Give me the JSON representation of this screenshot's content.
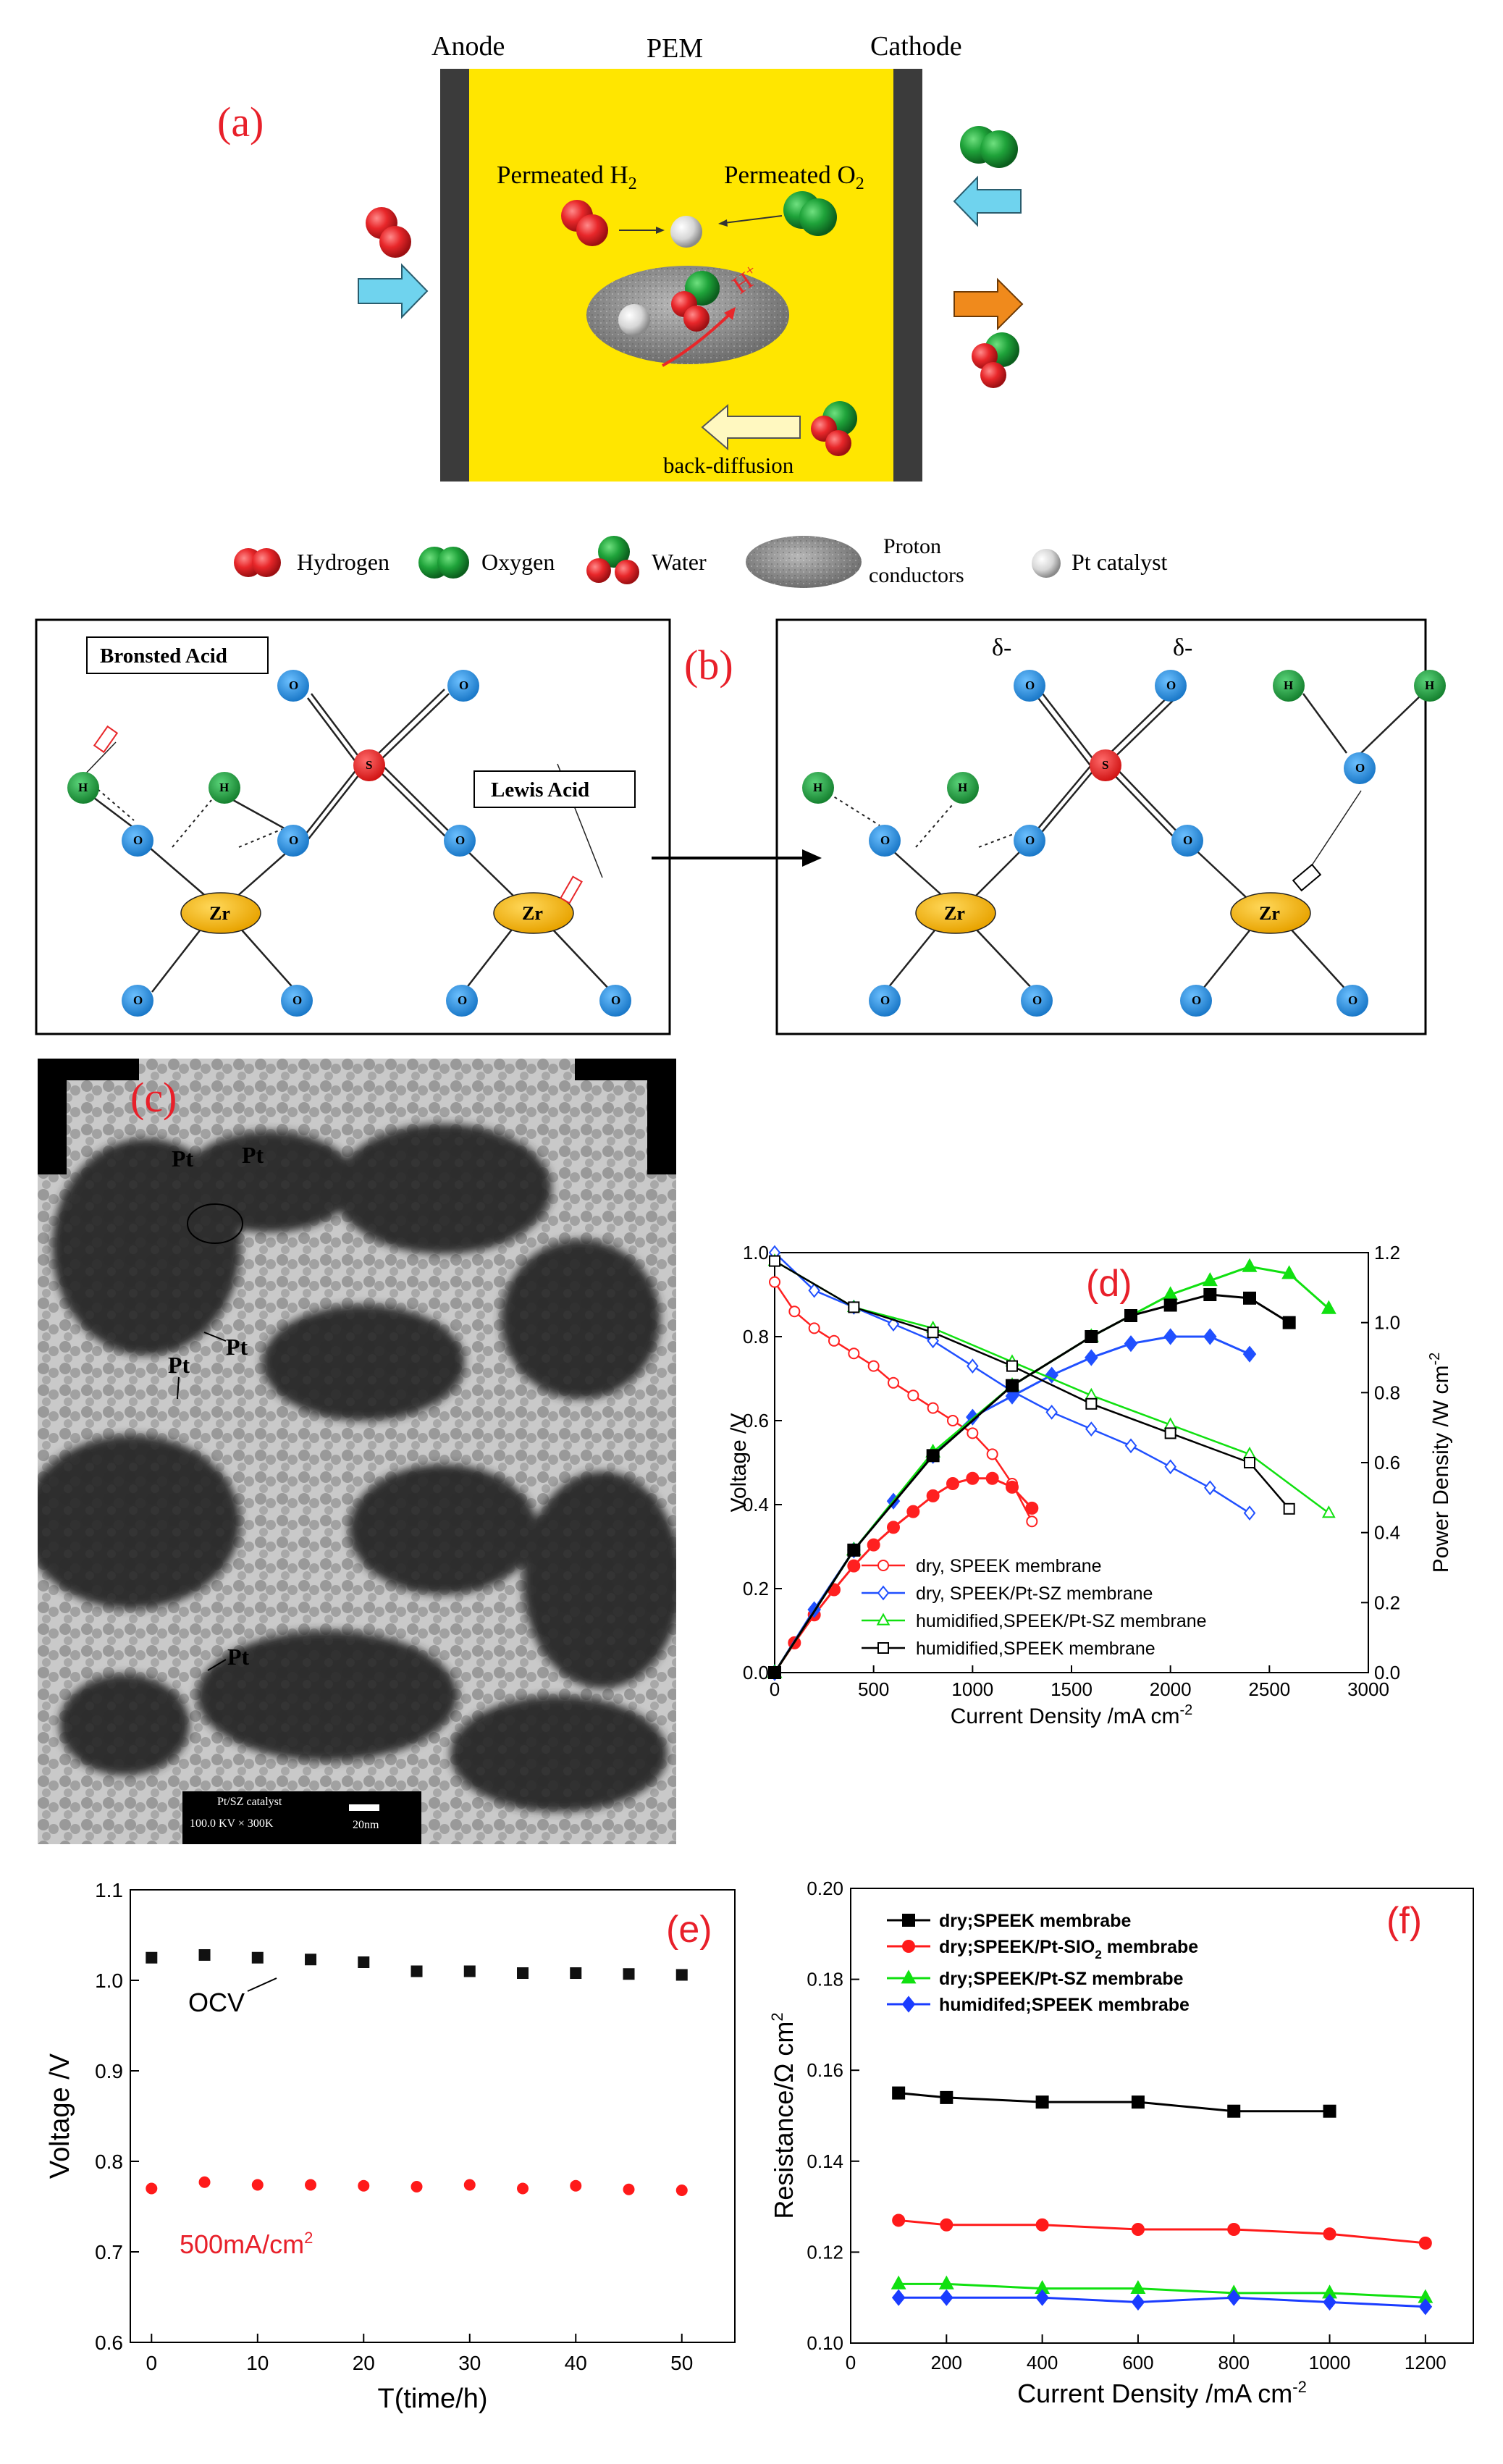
{
  "panel_a": {
    "letter": "(a)",
    "anode": "Anode",
    "pem": "PEM",
    "cathode": "Cathode",
    "permeated_h2": "Permeated H",
    "h2_sub": "2",
    "permeated_o2": "Permeated O",
    "o2_sub": "2",
    "hplus": "H",
    "hplus_sup": "+",
    "back_diffusion": "back-diffusion",
    "legend": {
      "hydrogen": "Hydrogen",
      "oxygen": "Oxygen",
      "water": "Water",
      "proton_1": "Proton",
      "proton_2": "conductors",
      "pt": "Pt catalyst"
    },
    "colors": {
      "pem": "#ffe600",
      "electrode": "#3b3b3b",
      "hydrogen": "#e8272a",
      "oxygen": "#1fa33a",
      "arrow_in": "#6fd3ee",
      "arrow_out": "#f08a1c"
    }
  },
  "panel_b": {
    "letter": "(b)",
    "bronsted": "Bronsted Acid",
    "lewis": "Lewis Acid",
    "delta": "δ-",
    "atoms": {
      "O": "O",
      "H": "H",
      "S": "S",
      "Zr": "Zr"
    },
    "colors": {
      "O": "#2b8fe0",
      "H": "#1f9e3c",
      "S": "#e52222",
      "Zr": "#f5b800"
    }
  },
  "panel_c": {
    "letter": "(c)",
    "pt_label": "Pt",
    "scalebar_line1": "Pt/SZ catalyst",
    "scalebar_line2": "100.0 KV  × 300K",
    "scalebar_len": "20nm"
  },
  "chart_data": [
    {
      "id": "d",
      "type": "line",
      "title": "(d)",
      "xlabel": "Current Density /mA cm",
      "xlabel_sup": "-2",
      "ylabel": "Voltage /V",
      "y2label": "Power Density /W cm",
      "y2label_sup": "-2",
      "xlim": [
        0,
        3000
      ],
      "ylim": [
        0,
        1.0
      ],
      "y2lim": [
        0,
        1.2
      ],
      "xticks": [
        "0",
        "500",
        "1000",
        "1500",
        "2000",
        "2500",
        "3000"
      ],
      "yticks": [
        "0.0",
        "0.2",
        "0.4",
        "0.6",
        "0.8",
        "1.0"
      ],
      "y2ticks": [
        "0.0",
        "0.2",
        "0.4",
        "0.6",
        "0.8",
        "1.0",
        "1.2"
      ],
      "legend": "bottom-center",
      "series": [
        {
          "name": "dry, SPEEK membrane",
          "color": "#ff2020",
          "marker": "circle",
          "voltage": {
            "x": [
              0,
              100,
              200,
              300,
              400,
              500,
              600,
              700,
              800,
              900,
              1000,
              1100,
              1200,
              1300
            ],
            "y": [
              0.93,
              0.86,
              0.82,
              0.79,
              0.76,
              0.73,
              0.69,
              0.66,
              0.63,
              0.6,
              0.57,
              0.52,
              0.45,
              0.36
            ]
          },
          "power": {
            "x": [
              0,
              100,
              200,
              300,
              400,
              500,
              600,
              700,
              800,
              900,
              1000,
              1100,
              1200,
              1300
            ],
            "y": [
              0,
              0.085,
              0.165,
              0.237,
              0.305,
              0.365,
              0.415,
              0.46,
              0.505,
              0.54,
              0.555,
              0.555,
              0.53,
              0.47
            ]
          }
        },
        {
          "name": "dry, SPEEK/Pt-SZ membrane",
          "color": "#2050ff",
          "marker": "diamond",
          "voltage": {
            "x": [
              0,
              200,
              400,
              600,
              800,
              1000,
              1200,
              1400,
              1600,
              1800,
              2000,
              2200,
              2400
            ],
            "y": [
              1.0,
              0.91,
              0.87,
              0.83,
              0.79,
              0.73,
              0.67,
              0.62,
              0.58,
              0.54,
              0.49,
              0.44,
              0.38
            ]
          },
          "power": {
            "x": [
              0,
              200,
              400,
              600,
              800,
              1000,
              1200,
              1400,
              1600,
              1800,
              2000,
              2200,
              2400
            ],
            "y": [
              0,
              0.18,
              0.35,
              0.49,
              0.62,
              0.73,
              0.79,
              0.85,
              0.9,
              0.94,
              0.96,
              0.96,
              0.91
            ]
          }
        },
        {
          "name": "humidified,SPEEK/Pt-SZ membrane",
          "color": "#10e010",
          "marker": "triangle",
          "voltage": {
            "x": [
              0,
              400,
              800,
              1200,
              1600,
              2000,
              2400,
              2800
            ],
            "y": [
              0.98,
              0.87,
              0.82,
              0.74,
              0.66,
              0.59,
              0.52,
              0.38
            ]
          },
          "power": {
            "x": [
              0,
              400,
              800,
              1200,
              1600,
              2000,
              2200,
              2400,
              2600,
              2800
            ],
            "y": [
              0,
              0.35,
              0.63,
              0.82,
              0.96,
              1.08,
              1.12,
              1.16,
              1.14,
              1.04
            ]
          }
        },
        {
          "name": "humidified,SPEEK membrane",
          "color": "#000000",
          "marker": "square",
          "voltage": {
            "x": [
              0,
              400,
              800,
              1200,
              1600,
              2000,
              2400,
              2600
            ],
            "y": [
              0.98,
              0.87,
              0.81,
              0.73,
              0.64,
              0.57,
              0.5,
              0.39
            ]
          },
          "power": {
            "x": [
              0,
              400,
              800,
              1200,
              1600,
              1800,
              2000,
              2200,
              2400,
              2600
            ],
            "y": [
              0,
              0.35,
              0.62,
              0.82,
              0.96,
              1.02,
              1.05,
              1.08,
              1.07,
              1.0
            ]
          }
        }
      ]
    },
    {
      "id": "e",
      "type": "scatter",
      "title": "(e)",
      "xlabel": "T(time/h)",
      "ylabel": "Voltage /V",
      "xlim": [
        -2,
        55
      ],
      "ylim": [
        0.6,
        1.1
      ],
      "xticks": [
        "0",
        "10",
        "20",
        "30",
        "40",
        "50"
      ],
      "yticks": [
        "0.6",
        "0.7",
        "0.8",
        "0.9",
        "1.0",
        "1.1"
      ],
      "annotations": [
        "OCV",
        "500mA/cm",
        "2"
      ],
      "series": [
        {
          "name": "OCV",
          "color": "#111111",
          "marker": "square",
          "x": [
            0,
            5,
            10,
            15,
            20,
            25,
            30,
            35,
            40,
            45,
            50
          ],
          "y": [
            1.025,
            1.028,
            1.025,
            1.023,
            1.02,
            1.01,
            1.01,
            1.008,
            1.008,
            1.007,
            1.006
          ]
        },
        {
          "name": "500mA/cm2",
          "color": "#ff1a1a",
          "marker": "circle",
          "x": [
            0,
            5,
            10,
            15,
            20,
            25,
            30,
            35,
            40,
            45,
            50
          ],
          "y": [
            0.77,
            0.777,
            0.774,
            0.774,
            0.773,
            0.772,
            0.774,
            0.77,
            0.773,
            0.769,
            0.768
          ]
        }
      ]
    },
    {
      "id": "f",
      "type": "line",
      "title": "(f)",
      "xlabel": "Current Density /mA cm",
      "xlabel_sup": "-2",
      "ylabel": "Resistance/Ω cm",
      "ylabel_sup": "2",
      "xlim": [
        0,
        1300
      ],
      "ylim": [
        0.1,
        0.2
      ],
      "xticks": [
        "0",
        "200",
        "400",
        "600",
        "800",
        "1000",
        "1200"
      ],
      "yticks": [
        "0.10",
        "0.12",
        "0.14",
        "0.16",
        "0.18",
        "0.20"
      ],
      "legend": "top-right",
      "series": [
        {
          "name": "dry;SPEEK membrabe",
          "color": "#000000",
          "marker": "square",
          "x": [
            100,
            200,
            400,
            600,
            800,
            1000
          ],
          "y": [
            0.155,
            0.154,
            0.153,
            0.153,
            0.151,
            0.151
          ]
        },
        {
          "name": "dry;SPEEK/Pt-SIO",
          "name_sub": "2",
          "name_tail": " membrabe",
          "color": "#ff1a1a",
          "marker": "circle",
          "x": [
            100,
            200,
            400,
            600,
            800,
            1000,
            1200
          ],
          "y": [
            0.127,
            0.126,
            0.126,
            0.125,
            0.125,
            0.124,
            0.122
          ]
        },
        {
          "name": "dry;SPEEK/Pt-SZ membrabe",
          "color": "#10e010",
          "marker": "triangle",
          "x": [
            100,
            200,
            400,
            600,
            800,
            1000,
            1200
          ],
          "y": [
            0.113,
            0.113,
            0.112,
            0.112,
            0.111,
            0.111,
            0.11
          ]
        },
        {
          "name": "humidifed;SPEEK membrabe",
          "color": "#1a3cff",
          "marker": "diamond",
          "x": [
            100,
            200,
            400,
            600,
            800,
            1000,
            1200
          ],
          "y": [
            0.11,
            0.11,
            0.11,
            0.109,
            0.11,
            0.109,
            0.108
          ]
        }
      ]
    }
  ]
}
